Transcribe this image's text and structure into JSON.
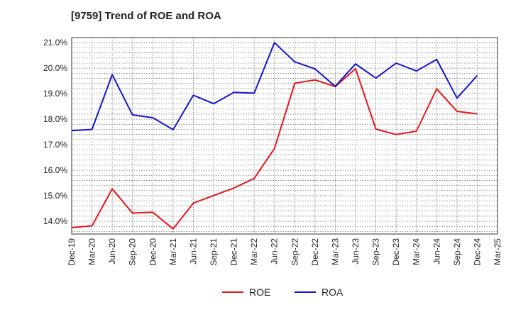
{
  "chart_data": {
    "type": "line",
    "title": "[9759]  Trend of ROE and ROA",
    "xlabel": "",
    "ylabel": "",
    "categories": [
      "Dec-19",
      "Mar-20",
      "Jun-20",
      "Sep-20",
      "Dec-20",
      "Mar-21",
      "Jun-21",
      "Sep-21",
      "Dec-21",
      "Mar-22",
      "Jun-22",
      "Sep-22",
      "Dec-22",
      "Mar-23",
      "Jun-23",
      "Sep-23",
      "Dec-23",
      "Mar-24",
      "Jun-24",
      "Sep-24",
      "Dec-24",
      "Mar-25"
    ],
    "ylim": [
      13.5,
      21.2
    ],
    "yticks": [
      14.0,
      15.0,
      16.0,
      17.0,
      18.0,
      19.0,
      20.0,
      21.0
    ],
    "ytick_labels": [
      "14.0%",
      "15.0%",
      "16.0%",
      "17.0%",
      "18.0%",
      "19.0%",
      "20.0%",
      "21.0%"
    ],
    "grid": true,
    "legend_position": "bottom",
    "series": [
      {
        "name": "ROE",
        "color": "#e8141a",
        "values": [
          13.75,
          13.82,
          15.27,
          14.32,
          14.35,
          13.7,
          14.71,
          15.01,
          15.3,
          15.68,
          16.85,
          19.41,
          19.54,
          19.28,
          19.98,
          17.61,
          17.4,
          17.53,
          19.19,
          18.31,
          18.21,
          null
        ]
      },
      {
        "name": "ROA",
        "color": "#1414d2",
        "values": [
          17.55,
          17.6,
          19.75,
          18.17,
          18.06,
          17.59,
          18.94,
          18.61,
          19.05,
          19.02,
          21.0,
          20.25,
          19.97,
          19.29,
          20.17,
          19.61,
          20.2,
          19.89,
          20.34,
          18.83,
          19.71,
          null
        ]
      }
    ]
  }
}
